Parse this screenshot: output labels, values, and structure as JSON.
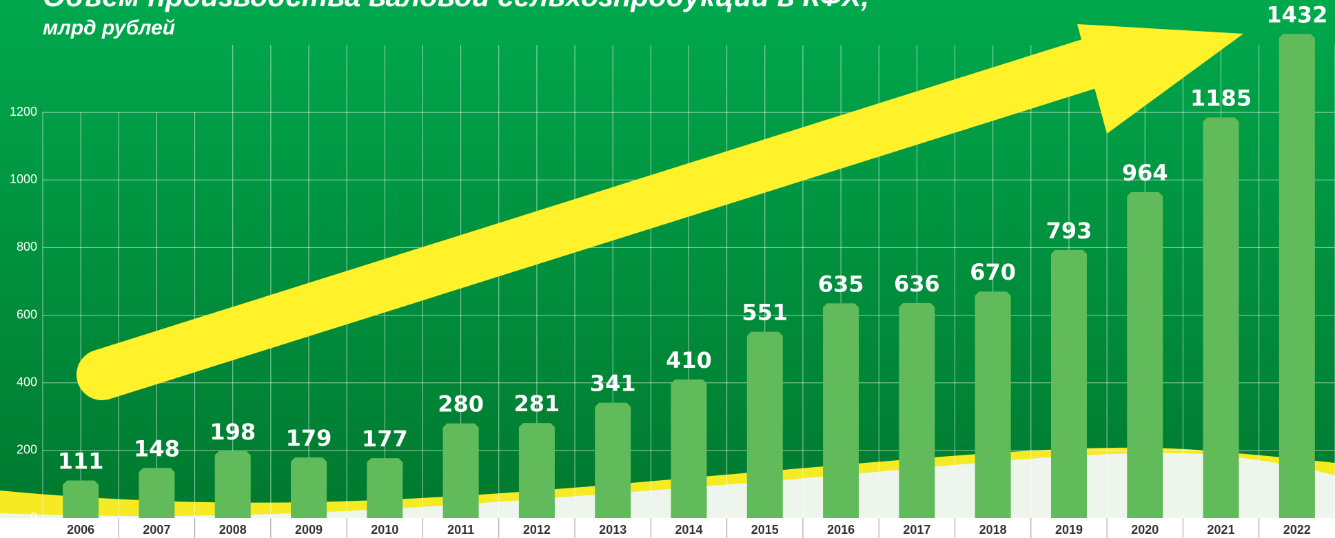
{
  "chart_data": {
    "type": "bar",
    "title": "Объем производства валовой сельхозпродукции в КФХ,",
    "subtitle": "млрд рублей",
    "categories": [
      "2006",
      "2007",
      "2008",
      "2009",
      "2010",
      "2011",
      "2012",
      "2013",
      "2014",
      "2015",
      "2016",
      "2017",
      "2018",
      "2019",
      "2020",
      "2021",
      "2022"
    ],
    "values": [
      111,
      148,
      198,
      179,
      177,
      280,
      281,
      341,
      410,
      551,
      635,
      636,
      670,
      793,
      964,
      1185,
      1432
    ],
    "color": "#62bb5a",
    "ylim": [
      0,
      1400
    ],
    "yticks": [
      0,
      200,
      400,
      600,
      800,
      1000,
      1200
    ],
    "grid": true
  }
}
